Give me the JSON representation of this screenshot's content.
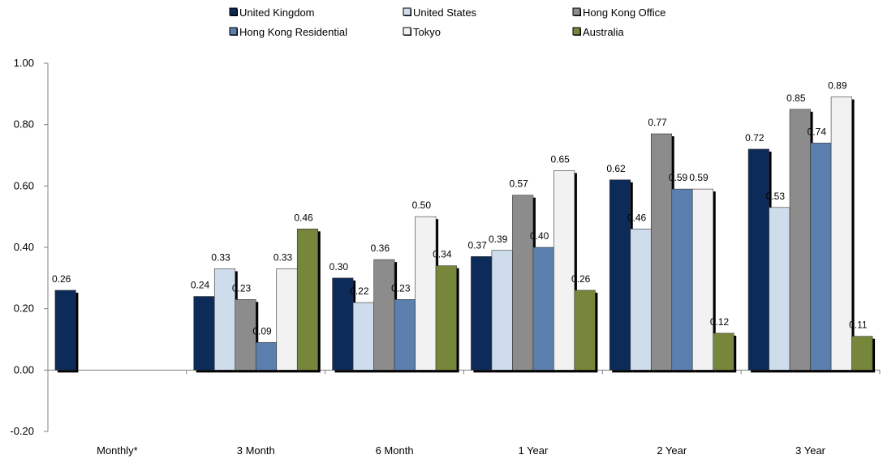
{
  "chart_data": {
    "type": "bar",
    "categories": [
      "Monthly*",
      "3 Month",
      "6 Month",
      "1 Year",
      "2 Year",
      "3 Year"
    ],
    "series": [
      {
        "name": "United Kingdom",
        "color": "#0d2b59",
        "values": [
          0.26,
          0.24,
          0.3,
          0.37,
          0.62,
          0.72
        ]
      },
      {
        "name": "United States",
        "color": "#cfdcec",
        "values": [
          null,
          0.33,
          0.22,
          0.39,
          0.46,
          0.53
        ]
      },
      {
        "name": "Hong Kong Office",
        "color": "#8c8c8c",
        "values": [
          null,
          0.23,
          0.36,
          0.57,
          0.77,
          0.85
        ]
      },
      {
        "name": "Hong Kong Residential",
        "color": "#5b7fae",
        "values": [
          null,
          0.09,
          0.23,
          0.4,
          0.59,
          0.74
        ]
      },
      {
        "name": "Tokyo",
        "color": "#f2f2f2",
        "values": [
          null,
          0.33,
          0.5,
          0.65,
          0.59,
          0.89
        ]
      },
      {
        "name": "Australia",
        "color": "#76863a",
        "values": [
          null,
          0.46,
          0.34,
          0.26,
          0.12,
          0.11
        ]
      }
    ],
    "data_labels": [
      [
        "0.26",
        "0.24",
        "0.30",
        "0.37",
        "0.62",
        "0.72"
      ],
      [
        null,
        "0.33",
        "0.22",
        "0.39",
        "0.46",
        "0.53"
      ],
      [
        null,
        "0.23",
        "0.36",
        "0.57",
        "0.77",
        "0.85"
      ],
      [
        null,
        "0.09",
        "0.23",
        "0.40",
        "0.59",
        "0.74"
      ],
      [
        null,
        "0.33",
        "0.50",
        "0.65",
        "0.59",
        "0.89"
      ],
      [
        null,
        "0.46",
        "0.34",
        "0.26",
        "0.12",
        "0.11"
      ]
    ],
    "y_ticks": [
      -0.2,
      0.0,
      0.2,
      0.4,
      0.6,
      0.8,
      1.0
    ],
    "y_tick_labels": [
      "-0.20",
      "0.00",
      "0.20",
      "0.40",
      "0.60",
      "0.80",
      "1.00"
    ],
    "ylim": [
      -0.2,
      1.0
    ],
    "title": "",
    "xlabel": "",
    "ylabel": "",
    "grid": false,
    "legend_position": "top"
  }
}
